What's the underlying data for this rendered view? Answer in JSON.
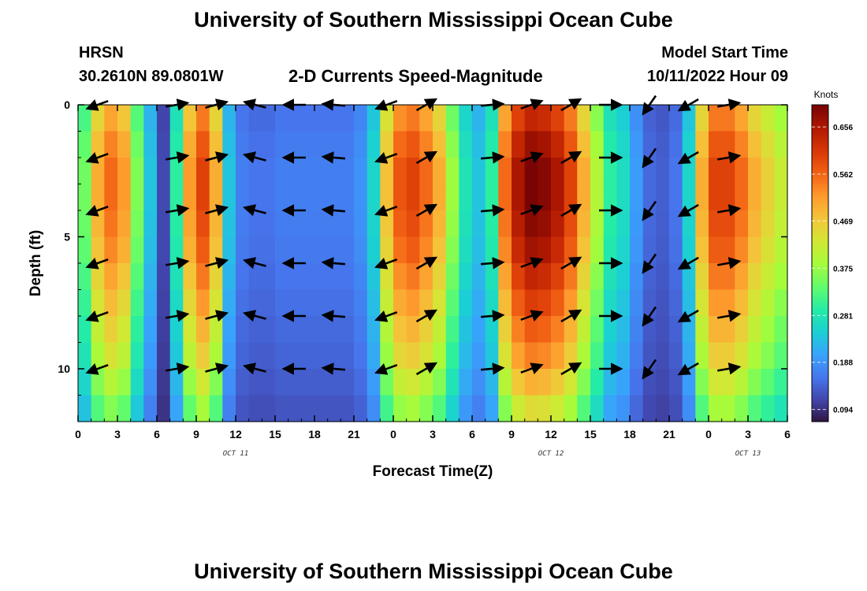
{
  "page": {
    "title_top": "University of Southern Mississippi Ocean Cube",
    "title_bottom": "University of Southern Mississippi Ocean Cube",
    "station": "HRSN",
    "coords": "30.2610N  89.0801W",
    "subtitle": "2-D Currents Speed-Magnitude",
    "model_start_label": "Model Start Time",
    "model_start_value": "10/11/2022 Hour 09"
  },
  "colors": {
    "palette": [
      "#30123b",
      "#4145ab",
      "#4675ed",
      "#39a2fc",
      "#1bcfd4",
      "#24eca6",
      "#61fc6c",
      "#a4fc3b",
      "#d1e834",
      "#f3c63a",
      "#fe9b2d",
      "#f36315",
      "#d93806",
      "#b11901",
      "#7a0403"
    ],
    "arrow": "#000000"
  },
  "chart_data": {
    "type": "heatmap",
    "title": "2-D Currents Speed-Magnitude",
    "xlabel": "Forecast Time(Z)",
    "ylabel": "Depth (ft)",
    "xlim": [
      0,
      54
    ],
    "ylim": [
      0,
      12
    ],
    "x_ticks": [
      0,
      3,
      6,
      9,
      12,
      15,
      18,
      21,
      24,
      27,
      30,
      33,
      36,
      39,
      42,
      45,
      48,
      51,
      54
    ],
    "x_tick_labels": [
      "0",
      "3",
      "6",
      "9",
      "12",
      "15",
      "18",
      "21",
      "0",
      "3",
      "6",
      "9",
      "12",
      "15",
      "18",
      "21",
      "0",
      "3",
      "6"
    ],
    "y_ticks": [
      0,
      5,
      10
    ],
    "y_tick_labels": [
      "0",
      "5",
      "10"
    ],
    "date_labels": [
      {
        "x": 12,
        "label": "OCT 11"
      },
      {
        "x": 36,
        "label": "OCT 12"
      },
      {
        "x": 51,
        "label": "OCT 13"
      }
    ],
    "colorbar": {
      "title": "Knots",
      "min": 0.07,
      "max": 0.7,
      "ticks": [
        0.656,
        0.562,
        0.469,
        0.375,
        0.281,
        0.188,
        0.094
      ],
      "tick_labels": [
        "0.656",
        "0.562",
        "0.469",
        "0.375",
        "0.281",
        "0.188",
        "0.094"
      ]
    },
    "time_hours": [
      0,
      1,
      2,
      3,
      4,
      5,
      6,
      7,
      8,
      9,
      10,
      11,
      12,
      13,
      14,
      15,
      16,
      17,
      18,
      19,
      20,
      21,
      22,
      23,
      24,
      25,
      26,
      27,
      28,
      29,
      30,
      31,
      32,
      33,
      34,
      35,
      36,
      37,
      38,
      39,
      40,
      41,
      42,
      43,
      44,
      45,
      46,
      47,
      48,
      49,
      50,
      51,
      52,
      53
    ],
    "time_speed_profile": [
      0.35,
      0.5,
      0.56,
      0.52,
      0.36,
      0.24,
      0.12,
      0.3,
      0.52,
      0.6,
      0.5,
      0.24,
      0.17,
      0.16,
      0.16,
      0.17,
      0.17,
      0.17,
      0.17,
      0.17,
      0.17,
      0.19,
      0.26,
      0.48,
      0.58,
      0.6,
      0.56,
      0.5,
      0.38,
      0.28,
      0.24,
      0.3,
      0.56,
      0.66,
      0.7,
      0.69,
      0.66,
      0.6,
      0.5,
      0.4,
      0.3,
      0.27,
      0.2,
      0.15,
      0.14,
      0.16,
      0.26,
      0.5,
      0.6,
      0.6,
      0.56,
      0.5,
      0.46,
      0.42
    ],
    "depth_levels_ft": [
      0,
      1,
      2,
      3,
      4,
      5,
      6,
      7,
      8,
      9,
      10,
      11
    ],
    "depth_factor": [
      0.9,
      0.96,
      1.0,
      1.0,
      0.98,
      0.95,
      0.9,
      0.85,
      0.8,
      0.75,
      0.68,
      0.6
    ],
    "vector_time_hours": [
      1.5,
      7.5,
      10.5,
      13.5,
      16.5,
      19.5,
      23.5,
      26.5,
      31.5,
      34.5,
      37.5,
      40.5,
      43.5,
      46.5,
      49.5
    ],
    "vector_depths_ft": [
      0,
      2,
      4,
      6,
      8,
      10
    ],
    "vector_dir_deg": [
      200,
      10,
      15,
      165,
      180,
      175,
      200,
      30,
      5,
      20,
      30,
      0,
      235,
      210,
      10
    ]
  }
}
